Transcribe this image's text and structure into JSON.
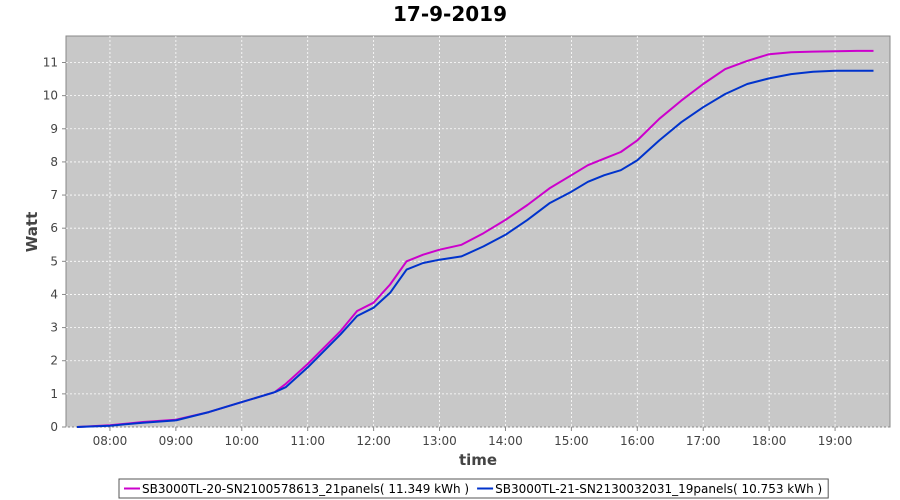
{
  "chart_data": {
    "type": "line",
    "title": "17-9-2019",
    "xlabel": "time",
    "ylabel": "Watt",
    "xlim": [
      "07:20",
      "19:50"
    ],
    "ylim": [
      0,
      11.8
    ],
    "x_ticks": [
      "08:00",
      "09:00",
      "10:00",
      "11:00",
      "12:00",
      "13:00",
      "14:00",
      "15:00",
      "16:00",
      "17:00",
      "18:00",
      "19:00"
    ],
    "y_ticks": [
      0,
      1,
      2,
      3,
      4,
      5,
      6,
      7,
      8,
      9,
      10,
      11
    ],
    "grid": true,
    "legend_position": "bottom",
    "series": [
      {
        "name": "SB3000TL-20-SN2100578613_21panels( 11.349 kWh )",
        "color": "#cc00cc",
        "x": [
          "07:30",
          "08:00",
          "08:30",
          "09:00",
          "09:30",
          "10:00",
          "10:30",
          "10:40",
          "11:00",
          "11:15",
          "11:30",
          "11:45",
          "12:00",
          "12:15",
          "12:30",
          "12:45",
          "13:00",
          "13:20",
          "13:40",
          "14:00",
          "14:20",
          "14:40",
          "15:00",
          "15:15",
          "15:30",
          "15:45",
          "16:00",
          "16:20",
          "16:40",
          "17:00",
          "17:20",
          "17:40",
          "18:00",
          "18:20",
          "18:40",
          "19:00",
          "19:20",
          "19:35"
        ],
        "values": [
          0.0,
          0.05,
          0.15,
          0.22,
          0.45,
          0.75,
          1.05,
          1.3,
          1.9,
          2.4,
          2.9,
          3.5,
          3.75,
          4.3,
          5.0,
          5.2,
          5.35,
          5.5,
          5.85,
          6.25,
          6.7,
          7.2,
          7.6,
          7.9,
          8.1,
          8.3,
          8.65,
          9.3,
          9.85,
          10.35,
          10.8,
          11.05,
          11.25,
          11.31,
          11.33,
          11.34,
          11.35,
          11.35
        ]
      },
      {
        "name": "SB3000TL-21-SN2130032031_19panels( 10.753 kWh )",
        "color": "#0033cc",
        "x": [
          "07:30",
          "08:00",
          "08:30",
          "09:00",
          "09:30",
          "10:00",
          "10:30",
          "10:40",
          "11:00",
          "11:15",
          "11:30",
          "11:45",
          "12:00",
          "12:15",
          "12:30",
          "12:45",
          "13:00",
          "13:20",
          "13:40",
          "14:00",
          "14:20",
          "14:40",
          "15:00",
          "15:15",
          "15:30",
          "15:45",
          "16:00",
          "16:20",
          "16:40",
          "17:00",
          "17:20",
          "17:40",
          "18:00",
          "18:20",
          "18:40",
          "19:00",
          "19:20",
          "19:35"
        ],
        "values": [
          0.0,
          0.04,
          0.13,
          0.2,
          0.45,
          0.75,
          1.05,
          1.2,
          1.8,
          2.3,
          2.8,
          3.35,
          3.6,
          4.05,
          4.75,
          4.95,
          5.05,
          5.15,
          5.45,
          5.8,
          6.25,
          6.75,
          7.1,
          7.4,
          7.6,
          7.75,
          8.05,
          8.65,
          9.2,
          9.65,
          10.05,
          10.35,
          10.52,
          10.65,
          10.72,
          10.75,
          10.75,
          10.75
        ]
      }
    ]
  }
}
